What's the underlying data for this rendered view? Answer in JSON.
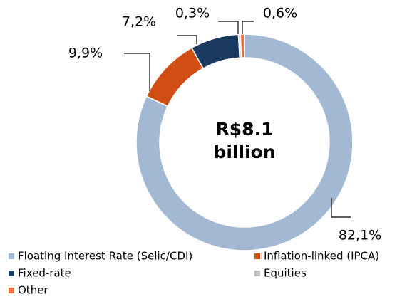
{
  "chart_data": {
    "type": "donut",
    "center_label": [
      "R$8.1",
      "billion"
    ],
    "categories": [
      "Floating Interest Rate (Selic/CDI)",
      "Inflation-linked (IPCA)",
      "Fixed-rate",
      "Equities",
      "Other"
    ],
    "values": [
      82.1,
      9.9,
      7.2,
      0.3,
      0.6
    ],
    "value_labels": [
      "82,1%",
      "9,9%",
      "7,2%",
      "0,3%",
      "0,6%"
    ],
    "colors": [
      "#a3b9d3",
      "#d04e14",
      "#1b3a5f",
      "#bfbfbf",
      "#f26b3a"
    ],
    "legend": "bottom"
  }
}
